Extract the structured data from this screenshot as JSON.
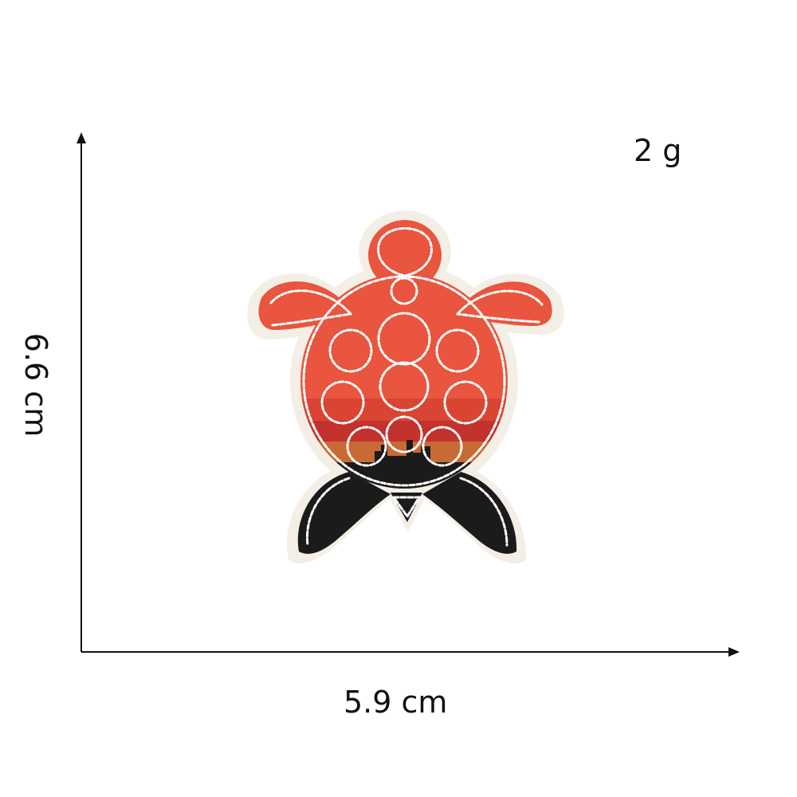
{
  "dimensions": {
    "width": "5.9 cm",
    "height": "6.6 cm",
    "weight": "2 g"
  },
  "patch": {
    "subject": "sea turtle embroidered patch",
    "colors": {
      "shell": "#e9553e",
      "shell_dark": "#d6442f",
      "sunset": "#c3322c",
      "horizon": "#c86a35",
      "flippers_back": "#1b1b1b",
      "border": "#f4efe6",
      "stitch": "#ffffff"
    }
  },
  "arrows": {
    "color": "#111111"
  }
}
